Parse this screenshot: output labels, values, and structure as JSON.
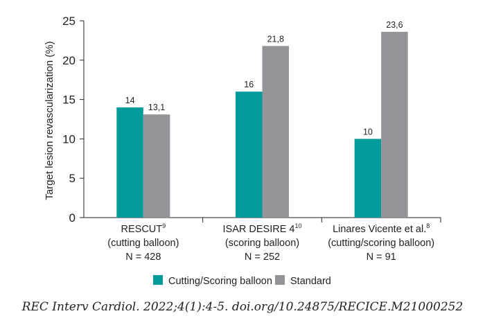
{
  "chart_data": {
    "type": "bar",
    "title": "",
    "xlabel": "",
    "ylabel": "Target lesion revascularization (%)",
    "ylim": [
      0,
      25
    ],
    "yticks": [
      0,
      5,
      10,
      15,
      20,
      25
    ],
    "grid": false,
    "legend_position": "bottom",
    "categories": [
      {
        "name": "RESCUT",
        "sup": "9",
        "line2": "(cutting balloon)",
        "line3": "N = 428"
      },
      {
        "name": "ISAR DESIRE 4",
        "sup": "10",
        "line2": "(scoring balloon)",
        "line3": "N = 252"
      },
      {
        "name": "Linares Vicente et al.",
        "sup": "8",
        "line2": "(cutting/scoring balloon)",
        "line3": "N = 91"
      }
    ],
    "series": [
      {
        "name": "Cutting/Scoring balloon",
        "color": "#009b9a",
        "values": [
          14,
          16,
          10
        ],
        "labels": [
          "14",
          "16",
          "10"
        ]
      },
      {
        "name": "Standard",
        "color": "#939498",
        "values": [
          13.1,
          21.8,
          23.6
        ],
        "labels": [
          "13,1",
          "21,8",
          "23,6"
        ]
      }
    ]
  },
  "caption": "REC Interv Cardiol. 2022;4(1):4-5. doi.org/10.24875/RECICE.M21000252"
}
